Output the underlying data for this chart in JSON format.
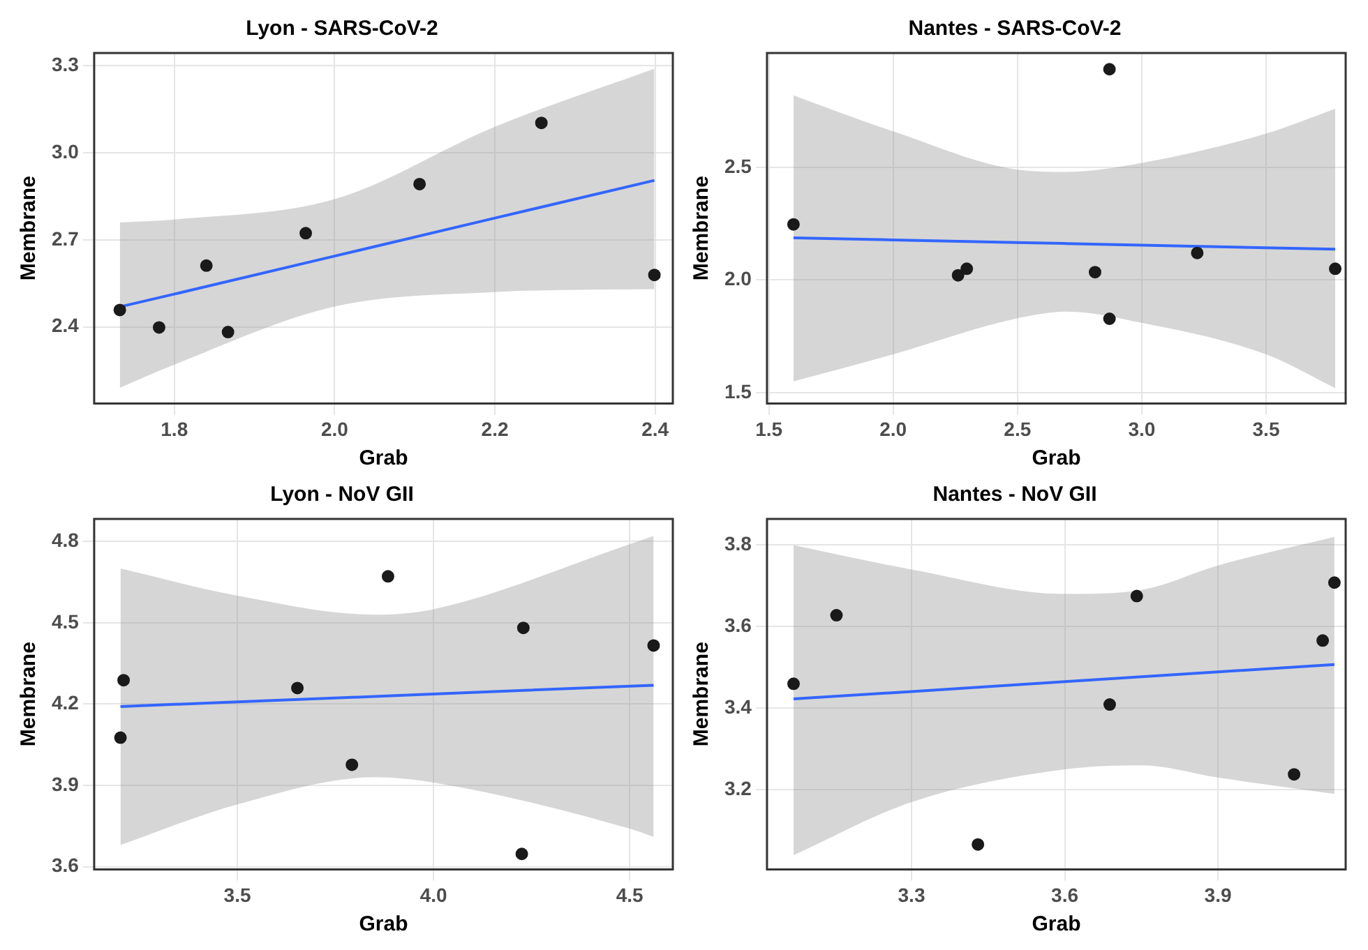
{
  "chart_data": [
    {
      "type": "scatter",
      "title": "Lyon - SARS-CoV-2",
      "xlabel": "Grab",
      "ylabel": "Membrane",
      "xlim": [
        1.7,
        2.422
      ],
      "xticks": [
        1.8,
        {
          "value": 2,
          "label": "2.0"
        },
        2.2,
        2.4
      ],
      "ylim": [
        2.136,
        3.344
      ],
      "yticks": [
        2.4,
        2.7,
        {
          "value": 3,
          "label": "3.0"
        },
        3.3
      ],
      "grid": true,
      "legend": false,
      "series": [
        {
          "marker": "circle",
          "color": "#1a1a1a",
          "x": [
            1.732,
            1.781,
            1.84,
            1.867,
            1.964,
            2.106,
            2.258,
            2.399
          ],
          "values": [
            2.458,
            2.398,
            2.611,
            2.382,
            2.723,
            2.892,
            3.103,
            2.579
          ]
        },
        {
          "type": "line",
          "marker": "none",
          "color": "#3366ff",
          "x": [
            1.732,
            1.8,
            2.0,
            2.2,
            2.399
          ],
          "values": [
            2.469,
            2.513,
            2.644,
            2.775,
            2.905
          ],
          "lower": [
            2.19,
            2.27,
            2.47,
            2.52,
            2.53
          ],
          "upper": [
            2.76,
            2.77,
            2.84,
            3.09,
            3.29
          ]
        }
      ]
    },
    {
      "type": "scatter",
      "title": "Nantes - SARS-CoV-2",
      "xlabel": "Grab",
      "ylabel": "Membrane",
      "xlim": [
        1.4925,
        3.82
      ],
      "xticks": [
        1.5,
        {
          "value": 2,
          "label": "2.0"
        },
        2.5,
        {
          "value": 3,
          "label": "3.0"
        },
        3.5
      ],
      "ylim": [
        1.452,
        3.008
      ],
      "yticks": [
        1.5,
        {
          "value": 2,
          "label": "2.0"
        },
        2.5
      ],
      "grid": true,
      "legend": false,
      "series": [
        {
          "marker": "circle",
          "color": "#1a1a1a",
          "x": [
            1.599,
            2.261,
            2.296,
            2.812,
            2.87,
            2.87,
            3.223,
            3.778
          ],
          "values": [
            2.247,
            2.021,
            2.05,
            2.035,
            2.936,
            1.828,
            2.12,
            2.05
          ]
        },
        {
          "type": "line",
          "marker": "none",
          "color": "#3366ff",
          "x": [
            1.599,
            2.0,
            2.5,
            2.7,
            3.0,
            3.5,
            3.778
          ],
          "values": [
            2.187,
            2.178,
            2.166,
            2.162,
            2.155,
            2.143,
            2.137
          ],
          "lower": [
            1.55,
            1.67,
            1.83,
            1.86,
            1.81,
            1.67,
            1.52
          ],
          "upper": [
            2.82,
            2.66,
            2.49,
            2.48,
            2.52,
            2.65,
            2.76
          ]
        }
      ]
    },
    {
      "type": "scatter",
      "title": "Lyon - NoV GII",
      "xlabel": "Grab",
      "ylabel": "Membrane",
      "xlim": [
        3.135,
        4.61
      ],
      "xticks": [
        3.5,
        {
          "value": 4,
          "label": "4.0"
        },
        4.5
      ],
      "ylim": [
        3.59,
        4.883
      ],
      "yticks": [
        3.6,
        3.9,
        4.2,
        4.5,
        4.8
      ],
      "grid": true,
      "legend": false,
      "series": [
        {
          "marker": "circle",
          "color": "#1a1a1a",
          "x": [
            3.202,
            3.21,
            3.653,
            3.792,
            3.884,
            4.229,
            4.225,
            4.561
          ],
          "values": [
            4.076,
            4.288,
            4.259,
            3.976,
            4.671,
            4.481,
            3.647,
            4.416
          ]
        },
        {
          "type": "line",
          "marker": "none",
          "color": "#3366ff",
          "x": [
            3.202,
            3.5,
            3.85,
            4.0,
            4.5,
            4.561
          ],
          "values": [
            4.191,
            4.208,
            4.228,
            4.237,
            4.266,
            4.269
          ],
          "lower": [
            3.68,
            3.83,
            3.93,
            3.91,
            3.74,
            3.71
          ],
          "upper": [
            4.7,
            4.6,
            4.53,
            4.55,
            4.79,
            4.82
          ]
        }
      ]
    },
    {
      "type": "scatter",
      "title": "Nantes - NoV GII",
      "xlabel": "Grab",
      "ylabel": "Membrane",
      "xlim": [
        3.017,
        4.15
      ],
      "xticks": [
        3.3,
        3.6,
        3.9
      ],
      "ylim": [
        3.005,
        3.864
      ],
      "yticks": [
        3.2,
        3.4,
        3.6,
        3.8
      ],
      "grid": true,
      "legend": false,
      "series": [
        {
          "marker": "circle",
          "color": "#1a1a1a",
          "x": [
            3.069,
            3.153,
            3.43,
            3.688,
            3.741,
            4.049,
            4.105,
            4.128
          ],
          "values": [
            3.46,
            3.628,
            3.066,
            3.409,
            3.675,
            3.238,
            3.566,
            3.708
          ]
        },
        {
          "type": "line",
          "marker": "none",
          "color": "#3366ff",
          "x": [
            3.069,
            3.3,
            3.6,
            3.75,
            3.9,
            4.128
          ],
          "values": [
            3.423,
            3.441,
            3.465,
            3.477,
            3.489,
            3.507
          ],
          "lower": [
            3.04,
            3.17,
            3.25,
            3.26,
            3.23,
            3.19
          ],
          "upper": [
            3.8,
            3.74,
            3.68,
            3.69,
            3.75,
            3.82
          ]
        }
      ]
    }
  ]
}
